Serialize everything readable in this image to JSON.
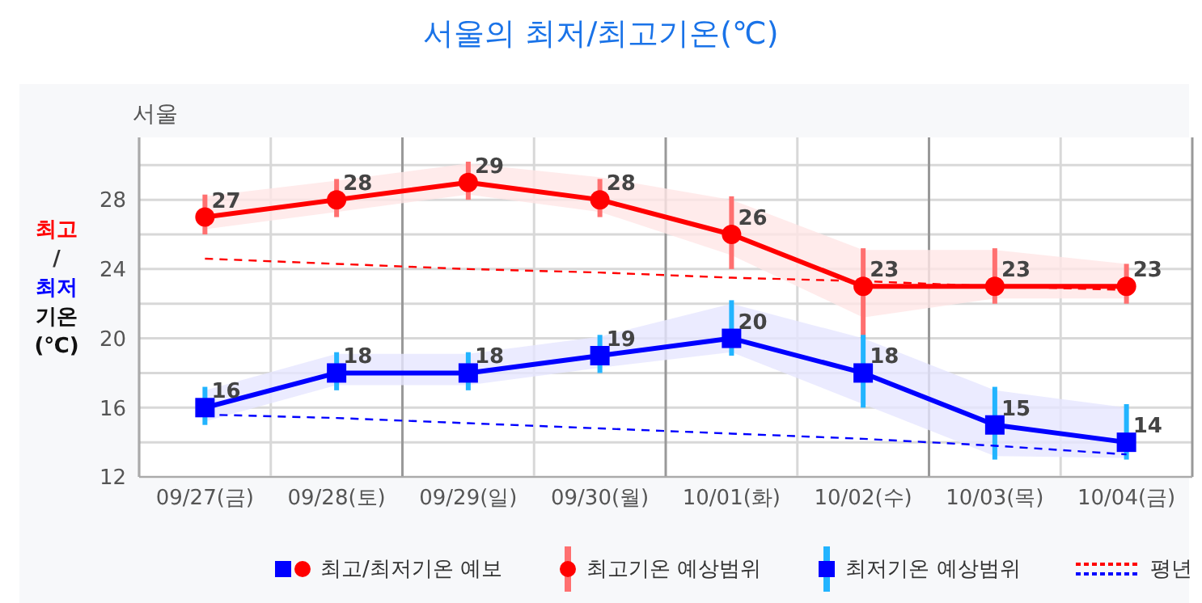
{
  "chart_data": {
    "type": "line",
    "title": "서울의 최저/최고기온(℃)",
    "subtitle": "서울",
    "ylabel": "최고\n/\n최저\n기온\n(℃)",
    "categories": [
      "09/27(금)",
      "09/28(토)",
      "09/29(일)",
      "09/30(월)",
      "10/01(화)",
      "10/02(수)",
      "10/03(목)",
      "10/04(금)"
    ],
    "series": [
      {
        "name": "최고/최저기온 예보",
        "color": "#ff0000",
        "marker": "circle",
        "values": [
          27,
          28,
          29,
          28,
          26,
          23,
          23,
          23
        ],
        "value_labels": [
          "27",
          "28",
          "29",
          "28",
          "26",
          "23",
          "23",
          "23"
        ],
        "errors": [
          [
            26,
            28.3
          ],
          [
            27,
            29.2
          ],
          [
            28,
            30.2
          ],
          [
            27,
            29.2
          ],
          [
            24,
            28.2
          ],
          [
            20,
            25.2
          ],
          [
            22,
            25.2
          ],
          [
            22,
            24.3
          ]
        ],
        "lower": [
          26.3,
          27.3,
          28.3,
          27.3,
          24.8,
          21.2,
          22.3,
          22.3
        ],
        "upper": [
          28.2,
          29.1,
          30.1,
          29.3,
          28.0,
          25.1,
          25.1,
          24.3
        ]
      },
      {
        "color": "#0000ff",
        "marker": "square",
        "values": [
          16,
          18,
          18,
          19,
          20,
          18,
          15,
          14
        ],
        "value_labels": [
          "16",
          "18",
          "18",
          "19",
          "20",
          "18",
          "15",
          "14"
        ],
        "errors": [
          [
            15,
            17.2
          ],
          [
            17,
            19.2
          ],
          [
            17,
            19.2
          ],
          [
            18,
            20.2
          ],
          [
            19,
            22.2
          ],
          [
            16,
            20.2
          ],
          [
            13,
            17.2
          ],
          [
            13,
            16.2
          ]
        ],
        "lower": [
          15.2,
          17.3,
          17.3,
          18.3,
          19.2,
          16.2,
          13.2,
          13.1
        ],
        "upper": [
          17.0,
          19.1,
          19.1,
          20.1,
          22.0,
          20.0,
          17.0,
          16.0
        ]
      },
      {
        "name": "평년",
        "color": "#ff0000",
        "line_style": "dashed",
        "marker": "none",
        "values": [
          24.6,
          24.3,
          24.0,
          23.8,
          23.5,
          23.3,
          23.0,
          22.8
        ]
      },
      {
        "color": "#0000ff",
        "line_style": "dashed",
        "marker": "none",
        "values": [
          15.6,
          15.4,
          15.1,
          14.8,
          14.5,
          14.2,
          13.8,
          13.3
        ]
      }
    ],
    "annotations": [
      "최고기온 예상범위",
      "최저기온 예상범위"
    ],
    "ylim": [
      12,
      31.6
    ],
    "yticks": [
      12,
      {
        "value": 14,
        "label": null
      },
      16,
      {
        "value": 18,
        "label": null
      },
      20,
      {
        "value": 22,
        "label": null
      },
      24,
      {
        "value": 26,
        "label": null
      },
      28,
      {
        "value": 30,
        "label": null
      }
    ],
    "grid": true,
    "legend": "bottom"
  }
}
